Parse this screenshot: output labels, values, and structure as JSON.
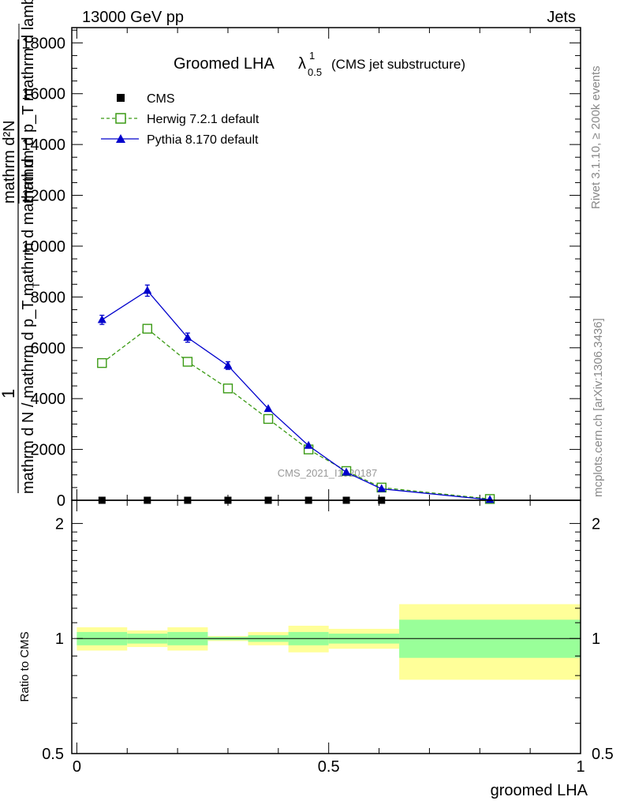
{
  "header": {
    "left": "13000 GeV pp",
    "right": "Jets"
  },
  "side": {
    "rivet": "Rivet 3.1.10, ≥ 200k events",
    "mcplots": "mcplots.cern.ch [arXiv:1306.3436]"
  },
  "chart_data": [
    {
      "type": "line",
      "panel": "main",
      "title": "Groomed LHA",
      "title_symbol": "λ",
      "title_sup": "1",
      "title_sub": "0.5",
      "subtitle": "(CMS jet substructure)",
      "watermark": "CMS_2021_I1920187",
      "ylabel_lines": [
        "1",
        "mathrm d N / mathrm d p_T mathrm d mathrm d",
        "mathrm d²N",
        "mathrm d p_T mathrm d lambda"
      ],
      "ylabel_sub": "T",
      "ylim": [
        0,
        18600
      ],
      "xlim": [
        -0.01,
        1.0
      ],
      "yticks": [
        0,
        2000,
        4000,
        6000,
        8000,
        10000,
        12000,
        14000,
        16000,
        18000
      ],
      "ytick_labels": [
        "0",
        "2000",
        "4000",
        "6000",
        "8000",
        "10000",
        "12000",
        "14000",
        "16000",
        "18000"
      ],
      "series": [
        {
          "name": "CMS",
          "style": "square-filled",
          "color": "#000000",
          "x": [
            0.05,
            0.14,
            0.22,
            0.3,
            0.38,
            0.46,
            0.535,
            0.605,
            0.82
          ],
          "y": [
            0,
            0,
            0,
            0,
            0,
            0,
            0,
            0,
            0
          ]
        },
        {
          "name": "Herwig 7.2.1 default",
          "style": "square-open-dashed",
          "color": "#3a9a14",
          "x": [
            0.05,
            0.14,
            0.22,
            0.3,
            0.38,
            0.46,
            0.535,
            0.605,
            0.82
          ],
          "y": [
            5400,
            6750,
            5450,
            4400,
            3200,
            2000,
            1150,
            500,
            50
          ]
        },
        {
          "name": "Pythia 8.170 default",
          "style": "triangle-filled-solid",
          "color": "#0000cc",
          "x": [
            0.05,
            0.14,
            0.22,
            0.3,
            0.38,
            0.46,
            0.535,
            0.605,
            0.82
          ],
          "y": [
            7100,
            8250,
            6400,
            5300,
            3600,
            2150,
            1100,
            450,
            20
          ],
          "yerr": [
            180,
            220,
            180,
            150,
            0,
            0,
            0,
            0,
            0
          ]
        }
      ]
    },
    {
      "type": "area",
      "panel": "ratio",
      "ylabel": "Ratio to CMS",
      "xlabel": "groomed LHA",
      "ylim": [
        0.5,
        2.3
      ],
      "xlim": [
        -0.01,
        1.0
      ],
      "yticks": [
        0.5,
        1,
        2
      ],
      "ytick_labels": [
        "0.5",
        "1",
        "2"
      ],
      "xticks": [
        0,
        0.5,
        1
      ],
      "xtick_labels": [
        "0",
        "0.5",
        "1"
      ],
      "reference": 1.0,
      "bands": [
        {
          "x0": 0.0,
          "x1": 0.1,
          "yellow": [
            0.93,
            1.07
          ],
          "green": [
            0.96,
            1.04
          ]
        },
        {
          "x0": 0.1,
          "x1": 0.18,
          "yellow": [
            0.95,
            1.05
          ],
          "green": [
            0.97,
            1.03
          ]
        },
        {
          "x0": 0.18,
          "x1": 0.26,
          "yellow": [
            0.93,
            1.07
          ],
          "green": [
            0.96,
            1.04
          ]
        },
        {
          "x0": 0.26,
          "x1": 0.34,
          "yellow": [
            0.985,
            1.015
          ],
          "green": [
            0.99,
            1.01
          ]
        },
        {
          "x0": 0.34,
          "x1": 0.42,
          "yellow": [
            0.96,
            1.04
          ],
          "green": [
            0.98,
            1.02
          ]
        },
        {
          "x0": 0.42,
          "x1": 0.5,
          "yellow": [
            0.92,
            1.08
          ],
          "green": [
            0.96,
            1.04
          ]
        },
        {
          "x0": 0.5,
          "x1": 0.64,
          "yellow": [
            0.94,
            1.06
          ],
          "green": [
            0.97,
            1.03
          ]
        },
        {
          "x0": 0.64,
          "x1": 1.0,
          "yellow": [
            0.78,
            1.23
          ],
          "green": [
            0.89,
            1.12
          ]
        }
      ],
      "band_colors": {
        "yellow": "#ffff99",
        "green": "#99ff99"
      }
    }
  ]
}
